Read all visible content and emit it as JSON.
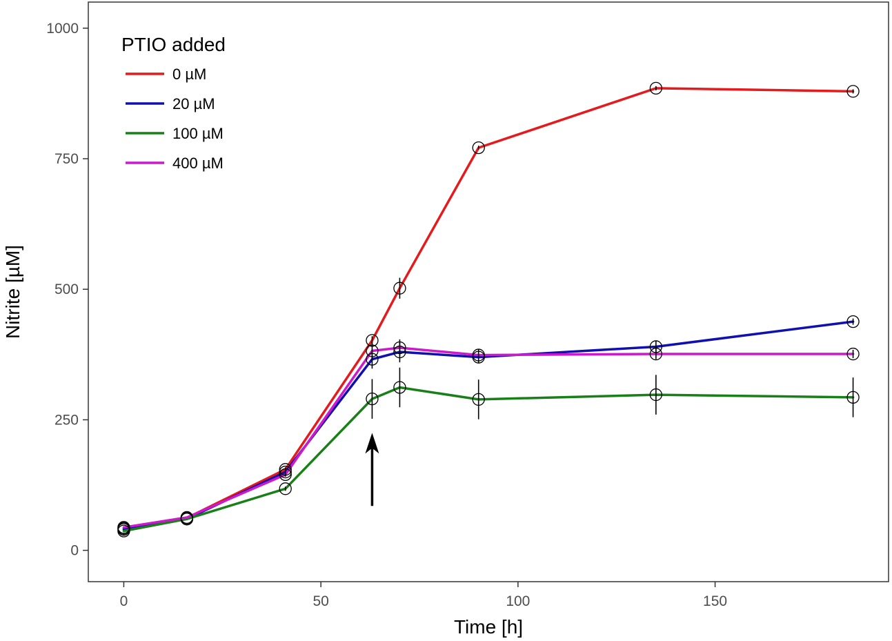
{
  "chart_data": {
    "type": "line",
    "title": "",
    "xlabel": "Time [h]",
    "ylabel": "Nitrite [µM]",
    "xlim": [
      -9,
      194
    ],
    "ylim": [
      -60,
      1050
    ],
    "xticks": [
      0,
      50,
      100,
      150
    ],
    "yticks": [
      0,
      250,
      500,
      750,
      1000
    ],
    "xtick_labels": [
      "0",
      "50",
      "100",
      "150"
    ],
    "ytick_labels": [
      "0",
      "250",
      "500",
      "750",
      "1000"
    ],
    "grid": false,
    "legend": {
      "title": "PTIO added",
      "position": "top-left",
      "entries": [
        "0 µM",
        "20 µM",
        "100 µM",
        "400 µM"
      ]
    },
    "x": [
      0,
      16,
      41,
      63,
      70,
      90,
      135,
      185
    ],
    "series": [
      {
        "name": "0 µM",
        "color": "#e41a1c",
        "values": [
          42,
          62,
          155,
          402,
          502,
          771,
          885,
          879
        ],
        "errors": [
          0,
          0,
          4,
          8,
          20,
          4,
          4,
          4
        ]
      },
      {
        "name": "20 µM",
        "color": "#1010b0",
        "values": [
          40,
          60,
          150,
          366,
          380,
          370,
          390,
          438
        ],
        "errors": [
          0,
          0,
          6,
          18,
          20,
          12,
          12,
          6
        ]
      },
      {
        "name": "100 µM",
        "color": "#198019",
        "values": [
          37,
          60,
          118,
          290,
          312,
          289,
          298,
          293
        ],
        "errors": [
          0,
          0,
          4,
          38,
          38,
          38,
          38,
          38
        ]
      },
      {
        "name": "400 µM",
        "color": "#cc19cc",
        "values": [
          44,
          63,
          145,
          382,
          388,
          374,
          376,
          376
        ],
        "errors": [
          0,
          0,
          4,
          18,
          16,
          12,
          10,
          8
        ]
      }
    ],
    "annotations": [
      {
        "type": "arrow",
        "x": 63,
        "y_from": 85,
        "y_to": 225
      }
    ]
  }
}
